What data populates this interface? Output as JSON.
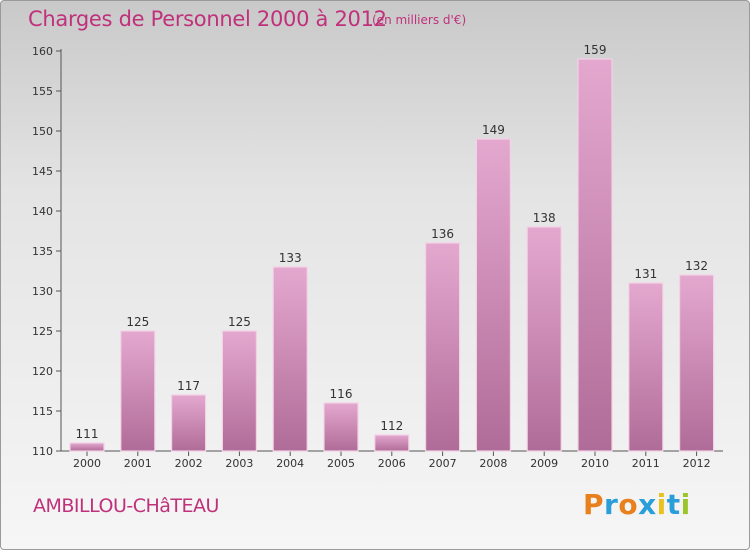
{
  "header": {
    "title": "Charges de Personnel 2000 à 2012",
    "subtitle": "(en milliers d'€)"
  },
  "footer": {
    "place": "AMBILLOU-CHâTEAU",
    "logo_text": "Proxiti",
    "logo_colors": [
      "#e8801e",
      "#2a9ed8",
      "#e8801e",
      "#2a9ed8",
      "#e8c21e",
      "#2a9ed8",
      "#9bc52d"
    ]
  },
  "colors": {
    "accent": "#c0317b",
    "bar_top": "#e4a8cf",
    "bar_bottom": "#b06c98",
    "bar_edge": "#f2d2e6"
  },
  "chart_data": {
    "type": "bar",
    "title": "Charges de Personnel 2000 à 2012",
    "subtitle": "(en milliers d'€)",
    "xlabel": "",
    "ylabel": "",
    "categories": [
      "2000",
      "2001",
      "2002",
      "2003",
      "2004",
      "2005",
      "2006",
      "2007",
      "2008",
      "2009",
      "2010",
      "2011",
      "2012"
    ],
    "values": [
      111,
      125,
      117,
      125,
      133,
      116,
      112,
      136,
      149,
      138,
      159,
      131,
      132
    ],
    "ylim": [
      110,
      160
    ],
    "yticks": [
      110,
      115,
      120,
      125,
      130,
      135,
      140,
      145,
      150,
      155,
      160
    ],
    "grid": false,
    "data_labels": true
  }
}
